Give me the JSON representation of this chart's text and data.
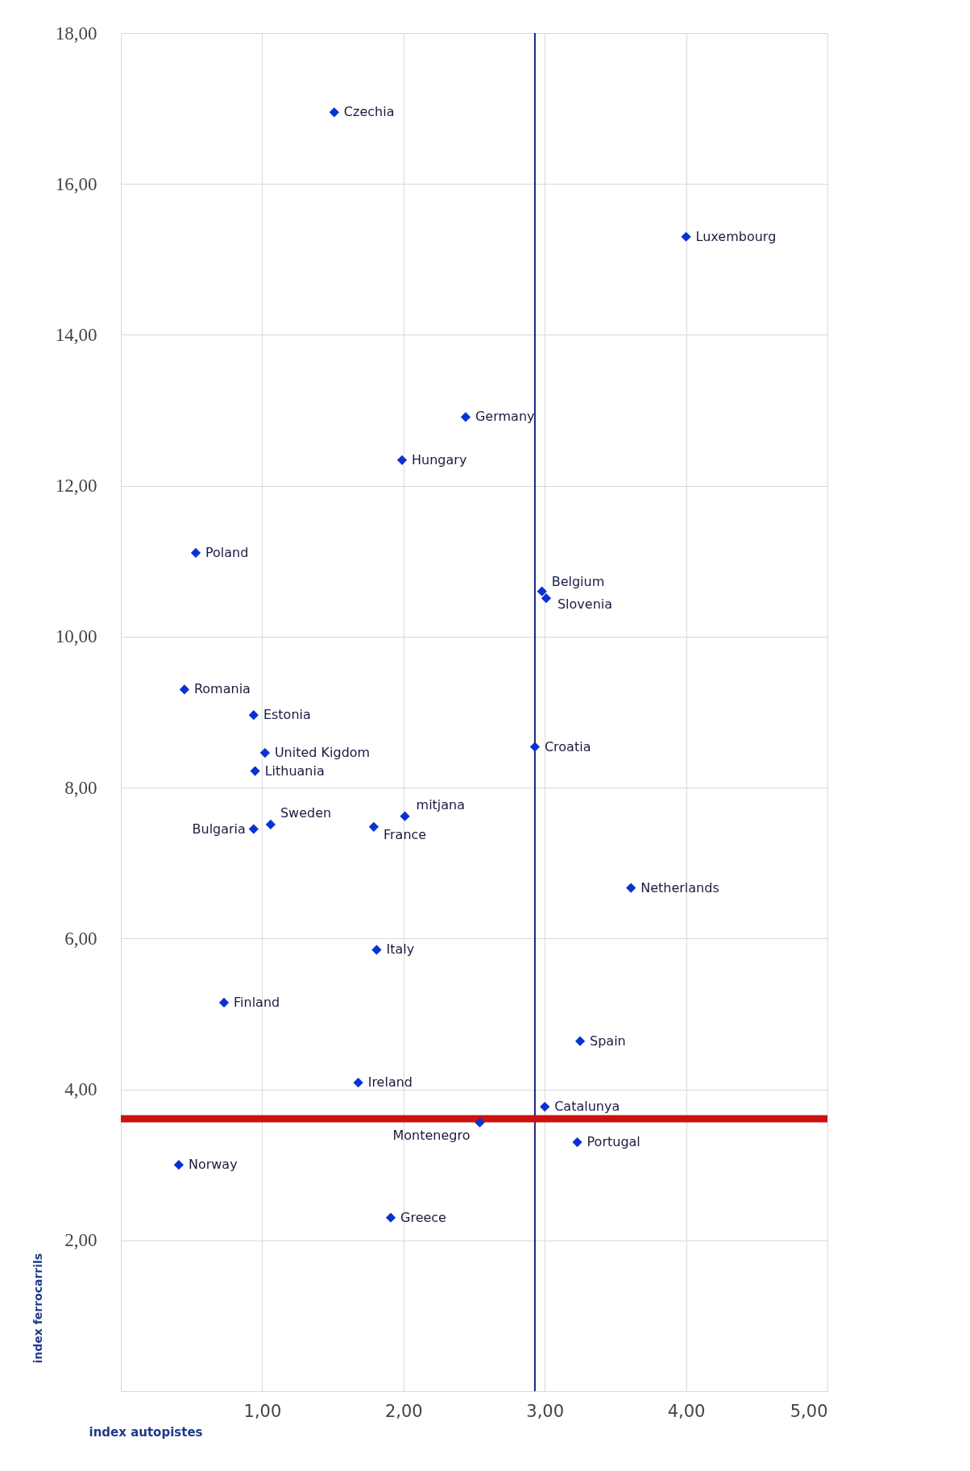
{
  "chart_data": {
    "type": "scatter",
    "xlabel": "index autopistes",
    "ylabel": "index ferrocarrils",
    "x": [
      1.51,
      4.0,
      2.44,
      1.99,
      0.53,
      2.98,
      3.01,
      0.45,
      0.94,
      1.02,
      0.95,
      2.93,
      2.01,
      1.06,
      0.94,
      1.79,
      3.61,
      1.81,
      0.73,
      3.25,
      1.68,
      3.0,
      2.54,
      3.23,
      0.41,
      1.91
    ],
    "values": [
      16.95,
      15.3,
      12.91,
      12.34,
      11.11,
      10.6,
      10.51,
      9.3,
      8.96,
      8.46,
      8.22,
      8.54,
      7.62,
      7.51,
      7.45,
      7.48,
      6.67,
      5.85,
      5.15,
      4.64,
      4.09,
      3.77,
      3.56,
      3.3,
      3.0,
      2.3
    ],
    "color": "#0a32d2",
    "marker": "diamond",
    "grid": true,
    "xlim": [
      0,
      5
    ],
    "ylim": [
      0,
      18
    ],
    "xticks": [
      {
        "value": 1,
        "label": "1,00"
      },
      {
        "value": 2,
        "label": "2,00"
      },
      {
        "value": 3,
        "label": "3,00"
      },
      {
        "value": 4,
        "label": "4,00"
      },
      {
        "value": 5,
        "label": "5,00"
      }
    ],
    "yticks": [
      {
        "value": 2,
        "label": "2,00"
      },
      {
        "value": 4,
        "label": "4,00"
      },
      {
        "value": 6,
        "label": "6,00"
      },
      {
        "value": 8,
        "label": "8,00"
      },
      {
        "value": 10,
        "label": "10,00"
      },
      {
        "value": 12,
        "label": "12,00"
      },
      {
        "value": 14,
        "label": "14,00"
      },
      {
        "value": 16,
        "label": "16,00"
      },
      {
        "value": 18,
        "label": "18,00"
      }
    ],
    "ref_lines": [
      {
        "axis": "x",
        "value": 2.93,
        "color": "#1a237e"
      },
      {
        "axis": "y",
        "value": 3.61,
        "color": "#cc1111"
      }
    ],
    "annotations": [
      {
        "text": "Czechia",
        "x": 1.51,
        "y": 16.95
      },
      {
        "text": "Luxembourg",
        "x": 4.0,
        "y": 15.3
      },
      {
        "text": "Germany",
        "x": 2.44,
        "y": 12.91
      },
      {
        "text": "Hungary",
        "x": 1.99,
        "y": 12.34
      },
      {
        "text": "Poland",
        "x": 0.53,
        "y": 11.11
      },
      {
        "text": "Belgium",
        "x": 2.98,
        "y": 10.6
      },
      {
        "text": "Slovenia",
        "x": 3.01,
        "y": 10.51
      },
      {
        "text": "Romania",
        "x": 0.45,
        "y": 9.3
      },
      {
        "text": "Estonia",
        "x": 0.94,
        "y": 8.96
      },
      {
        "text": "United Kigdom",
        "x": 1.02,
        "y": 8.46
      },
      {
        "text": "Lithuania",
        "x": 0.95,
        "y": 8.22
      },
      {
        "text": "Croatia",
        "x": 2.93,
        "y": 8.54
      },
      {
        "text": "mitjana",
        "x": 2.01,
        "y": 7.62
      },
      {
        "text": "Sweden",
        "x": 1.06,
        "y": 7.51
      },
      {
        "text": "Bulgaria",
        "x": 0.94,
        "y": 7.45
      },
      {
        "text": "France",
        "x": 1.79,
        "y": 7.48
      },
      {
        "text": "Netherlands",
        "x": 3.61,
        "y": 6.67
      },
      {
        "text": "Italy",
        "x": 1.81,
        "y": 5.85
      },
      {
        "text": "Finland",
        "x": 0.73,
        "y": 5.15
      },
      {
        "text": "Spain",
        "x": 3.25,
        "y": 4.64
      },
      {
        "text": "Ireland",
        "x": 1.68,
        "y": 4.09
      },
      {
        "text": "Catalunya",
        "x": 3.0,
        "y": 3.77
      },
      {
        "text": "Montenegro",
        "x": 2.54,
        "y": 3.56
      },
      {
        "text": "Portugal",
        "x": 3.23,
        "y": 3.3
      },
      {
        "text": "Norway",
        "x": 0.41,
        "y": 3.0
      },
      {
        "text": "Greece",
        "x": 1.91,
        "y": 2.3
      }
    ]
  }
}
